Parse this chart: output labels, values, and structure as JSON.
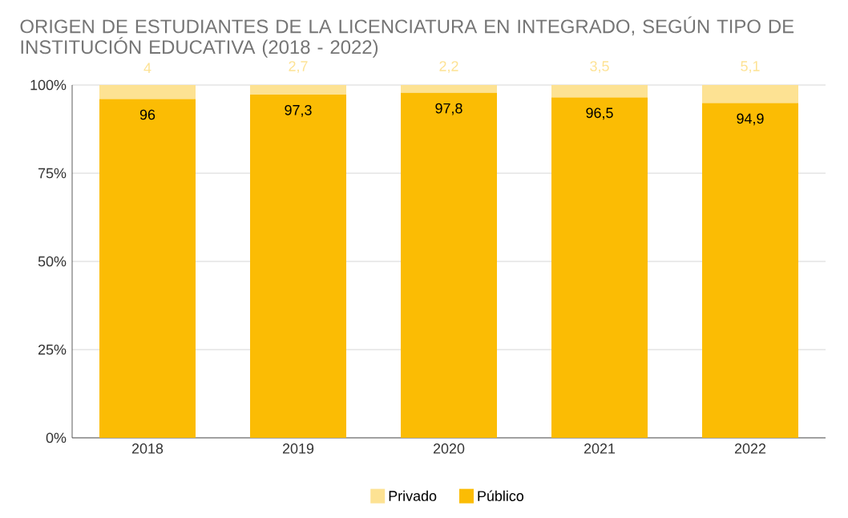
{
  "chart_data": {
    "type": "bar",
    "stacked": true,
    "title": "ORIGEN DE ESTUDIANTES DE LA LICENCIATURA EN INTEGRADO, SEGÚN TIPO DE INSTITUCIÓN EDUCATIVA (2018 - 2022)",
    "categories": [
      "2018",
      "2019",
      "2020",
      "2021",
      "2022"
    ],
    "series": [
      {
        "name": "Público",
        "color": "#fbbc04",
        "values": [
          96,
          97.3,
          97.8,
          96.5,
          94.9
        ],
        "value_labels": [
          "96",
          "97,3",
          "97,8",
          "96,5",
          "94,9"
        ]
      },
      {
        "name": "Privado",
        "color": "#fde293",
        "values": [
          4,
          2.7,
          2.2,
          3.5,
          5.1
        ],
        "value_labels": [
          "4",
          "2,7",
          "2,2",
          "3,5",
          "5,1"
        ]
      }
    ],
    "ylim": [
      0,
      100
    ],
    "yticks": [
      {
        "value": 0,
        "label": "0%"
      },
      {
        "value": 25,
        "label": "25%"
      },
      {
        "value": 50,
        "label": "50%"
      },
      {
        "value": 75,
        "label": "75%"
      },
      {
        "value": 100,
        "label": "100%"
      }
    ],
    "grid": "y",
    "legend": "bottom"
  }
}
